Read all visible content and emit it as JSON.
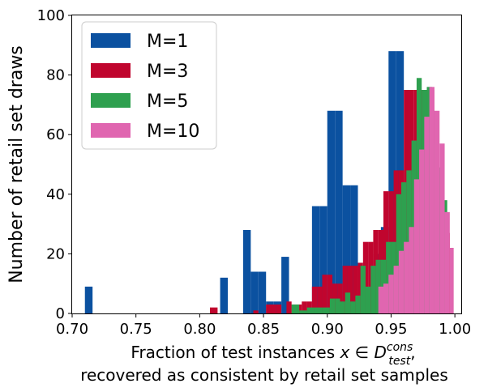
{
  "chart_data": {
    "type": "bar",
    "subtype": "overlaid histogram",
    "xlabel_line1_prefix": "Fraction of test instances ",
    "xlabel_math": "x ∈ D",
    "xlabel_sup": "cons",
    "xlabel_sub": "test",
    "xlabel_line1_suffix": ",",
    "xlabel_line2": "recovered as consistent by retail set samples",
    "ylabel": "Number of retail set draws",
    "xlim": [
      0.7,
      1.005
    ],
    "ylim": [
      0,
      100
    ],
    "xticks": [
      "0.70",
      "0.75",
      "0.80",
      "0.85",
      "0.90",
      "0.95",
      "1.00"
    ],
    "yticks": [
      "0",
      "20",
      "40",
      "60",
      "80",
      "100"
    ],
    "grid": false,
    "legend_position": "top-left",
    "series": [
      {
        "name": "M=1",
        "color": "#0b51a0",
        "bins": [
          [
            0.71,
            0.716,
            9
          ],
          [
            0.816,
            0.822,
            12
          ],
          [
            0.834,
            0.84,
            28
          ],
          [
            0.84,
            0.846,
            14
          ],
          [
            0.846,
            0.852,
            14
          ],
          [
            0.852,
            0.858,
            4
          ],
          [
            0.858,
            0.864,
            4
          ],
          [
            0.864,
            0.87,
            19
          ],
          [
            0.87,
            0.876,
            0
          ],
          [
            0.876,
            0.882,
            0
          ],
          [
            0.882,
            0.888,
            0
          ],
          [
            0.888,
            0.894,
            36
          ],
          [
            0.894,
            0.9,
            36
          ],
          [
            0.9,
            0.906,
            68
          ],
          [
            0.906,
            0.912,
            68
          ],
          [
            0.912,
            0.918,
            43
          ],
          [
            0.918,
            0.924,
            43
          ],
          [
            0.924,
            0.93,
            0
          ],
          [
            0.93,
            0.936,
            0
          ],
          [
            0.936,
            0.942,
            20
          ],
          [
            0.942,
            0.948,
            29
          ],
          [
            0.948,
            0.954,
            88
          ],
          [
            0.954,
            0.96,
            88
          ]
        ]
      },
      {
        "name": "M=3",
        "color": "#c0052e",
        "bins": [
          [
            0.808,
            0.814,
            2
          ],
          [
            0.842,
            0.846,
            1
          ],
          [
            0.852,
            0.856,
            3
          ],
          [
            0.856,
            0.86,
            3
          ],
          [
            0.86,
            0.864,
            3
          ],
          [
            0.868,
            0.872,
            4
          ],
          [
            0.872,
            0.876,
            3
          ],
          [
            0.876,
            0.88,
            3
          ],
          [
            0.88,
            0.884,
            4
          ],
          [
            0.884,
            0.888,
            4
          ],
          [
            0.888,
            0.892,
            9
          ],
          [
            0.892,
            0.896,
            9
          ],
          [
            0.896,
            0.9,
            13
          ],
          [
            0.9,
            0.904,
            13
          ],
          [
            0.904,
            0.908,
            10
          ],
          [
            0.908,
            0.912,
            10
          ],
          [
            0.912,
            0.916,
            16
          ],
          [
            0.916,
            0.92,
            16
          ],
          [
            0.92,
            0.924,
            16
          ],
          [
            0.924,
            0.928,
            17
          ],
          [
            0.928,
            0.932,
            24
          ],
          [
            0.932,
            0.936,
            24
          ],
          [
            0.936,
            0.94,
            28
          ],
          [
            0.94,
            0.944,
            28
          ],
          [
            0.944,
            0.948,
            41
          ],
          [
            0.948,
            0.952,
            41
          ],
          [
            0.952,
            0.956,
            48
          ],
          [
            0.956,
            0.96,
            48
          ],
          [
            0.96,
            0.964,
            75
          ],
          [
            0.964,
            0.968,
            75
          ],
          [
            0.968,
            0.972,
            75
          ],
          [
            0.972,
            0.976,
            75
          ],
          [
            0.976,
            0.98,
            75
          ],
          [
            0.98,
            0.984,
            75
          ],
          [
            0.984,
            0.988,
            36
          ],
          [
            0.988,
            0.992,
            36
          ],
          [
            0.992,
            0.996,
            27
          ],
          [
            0.996,
            0.999,
            22
          ]
        ]
      },
      {
        "name": "M=5",
        "color": "#2ea04f",
        "bins": [
          [
            0.872,
            0.878,
            3
          ],
          [
            0.878,
            0.884,
            1
          ],
          [
            0.884,
            0.89,
            2
          ],
          [
            0.89,
            0.896,
            2
          ],
          [
            0.896,
            0.902,
            2
          ],
          [
            0.902,
            0.906,
            5
          ],
          [
            0.906,
            0.91,
            5
          ],
          [
            0.91,
            0.914,
            4
          ],
          [
            0.914,
            0.918,
            7
          ],
          [
            0.918,
            0.922,
            4
          ],
          [
            0.922,
            0.926,
            6
          ],
          [
            0.926,
            0.93,
            16
          ],
          [
            0.93,
            0.934,
            9
          ],
          [
            0.934,
            0.938,
            16
          ],
          [
            0.938,
            0.942,
            18
          ],
          [
            0.942,
            0.946,
            18
          ],
          [
            0.946,
            0.95,
            24
          ],
          [
            0.95,
            0.954,
            24
          ],
          [
            0.954,
            0.958,
            40
          ],
          [
            0.958,
            0.962,
            44
          ],
          [
            0.962,
            0.966,
            48
          ],
          [
            0.966,
            0.97,
            58
          ],
          [
            0.97,
            0.974,
            79
          ],
          [
            0.974,
            0.978,
            75
          ],
          [
            0.978,
            0.982,
            76
          ],
          [
            0.982,
            0.986,
            57
          ],
          [
            0.986,
            0.99,
            49
          ],
          [
            0.99,
            0.994,
            38
          ]
        ]
      },
      {
        "name": "M=10",
        "color": "#e066b0",
        "bins": [
          [
            0.94,
            0.944,
            9
          ],
          [
            0.944,
            0.948,
            10
          ],
          [
            0.948,
            0.952,
            13
          ],
          [
            0.952,
            0.956,
            16
          ],
          [
            0.956,
            0.96,
            21
          ],
          [
            0.96,
            0.964,
            24
          ],
          [
            0.964,
            0.968,
            29
          ],
          [
            0.968,
            0.972,
            45
          ],
          [
            0.972,
            0.976,
            55
          ],
          [
            0.976,
            0.98,
            66
          ],
          [
            0.98,
            0.984,
            76
          ],
          [
            0.984,
            0.988,
            68
          ],
          [
            0.988,
            0.992,
            57
          ],
          [
            0.992,
            0.996,
            34
          ],
          [
            0.996,
            0.999,
            22
          ]
        ]
      }
    ]
  }
}
